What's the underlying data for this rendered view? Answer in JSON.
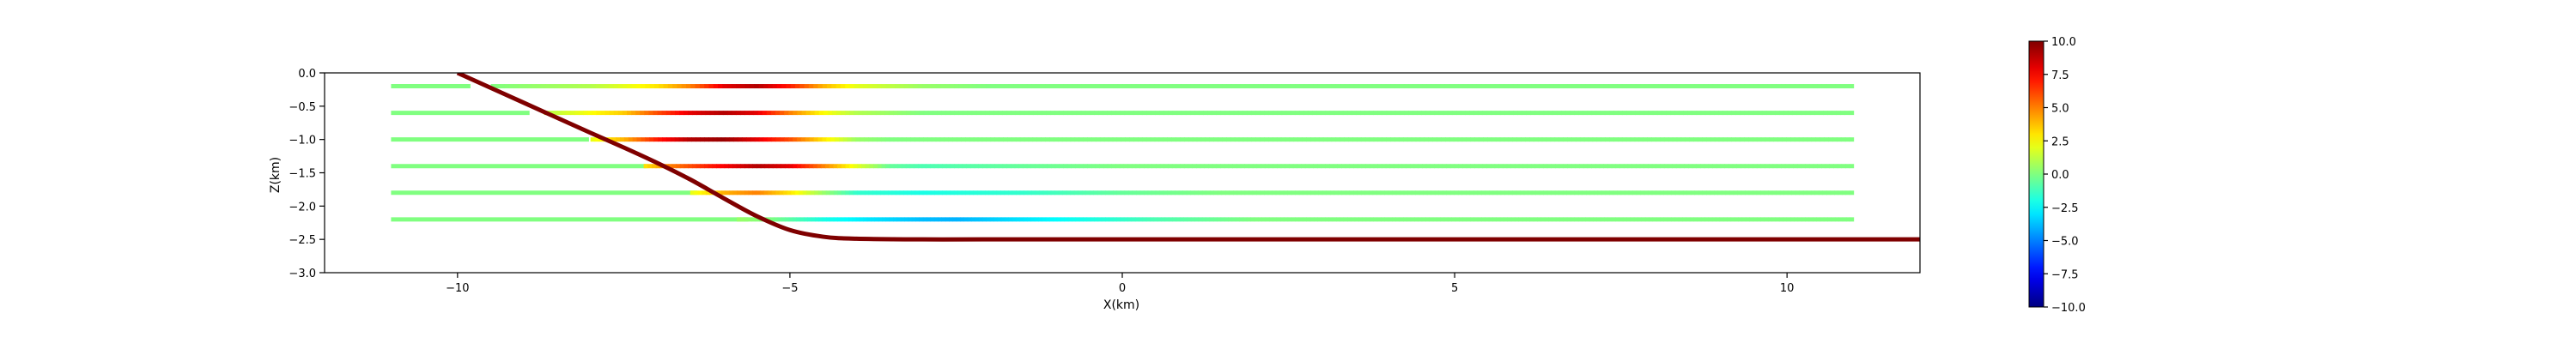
{
  "chart_data": {
    "type": "scatter",
    "xlabel": "X(km)",
    "ylabel": "Z(km)",
    "xlim": [
      -12,
      12
    ],
    "ylim": [
      -3.0,
      0.0
    ],
    "xticks": [
      -10,
      -5,
      0,
      5,
      10
    ],
    "yticks": [
      0.0,
      -0.5,
      -1.0,
      -1.5,
      -2.0,
      -2.5,
      -3.0
    ],
    "xtick_labels": [
      "−10",
      "−5",
      "0",
      "5",
      "10"
    ],
    "ytick_labels": [
      "0.0",
      "−0.5",
      "−1.0",
      "−1.5",
      "−2.0",
      "−2.5",
      "−3.0"
    ],
    "grid": false,
    "colorbar": {
      "colormap": "jet",
      "range": [
        -10.0,
        10.0
      ],
      "ticks": [
        10.0,
        7.5,
        5.0,
        2.5,
        0.0,
        -2.5,
        -5.0,
        -7.5,
        -10.0
      ],
      "tick_labels": [
        "10.0",
        "7.5",
        "5.0",
        "2.5",
        "0.0",
        "−2.5",
        "−5.0",
        "−7.5",
        "−10.0"
      ]
    },
    "fault": {
      "color": "#7f0000",
      "x": [
        -10.0,
        -9.0,
        -8.0,
        -7.5,
        -7.0,
        -6.5,
        -6.0,
        -5.5,
        -5.0,
        -4.5,
        -4.0,
        -3.0,
        -2.0,
        0.0,
        5.0,
        10.0,
        12.0
      ],
      "z": [
        0.0,
        -0.45,
        -0.9,
        -1.12,
        -1.35,
        -1.6,
        -1.88,
        -2.15,
        -2.36,
        -2.46,
        -2.49,
        -2.5,
        -2.5,
        -2.5,
        -2.5,
        -2.5,
        -2.5
      ]
    },
    "profiles": [
      {
        "z": -0.2,
        "x_start": -11.0,
        "x_end": 11.0,
        "hanging_wall_start": -9.5,
        "value_points": [
          [
            -9.5,
            0.0
          ],
          [
            -8.0,
            1.0
          ],
          [
            -7.0,
            3.0
          ],
          [
            -6.5,
            5.0
          ],
          [
            -6.0,
            8.0
          ],
          [
            -5.5,
            9.0
          ],
          [
            -5.0,
            7.0
          ],
          [
            -4.5,
            4.0
          ],
          [
            -4.0,
            2.0
          ],
          [
            -3.0,
            0.5
          ],
          [
            -2.0,
            0.0
          ],
          [
            11.0,
            0.0
          ]
        ]
      },
      {
        "z": -0.6,
        "x_start": -11.0,
        "x_end": 11.0,
        "hanging_wall_start": -8.7,
        "value_points": [
          [
            -8.7,
            1.0
          ],
          [
            -8.2,
            2.0
          ],
          [
            -7.5,
            3.5
          ],
          [
            -7.0,
            6.0
          ],
          [
            -6.5,
            8.0
          ],
          [
            -6.0,
            9.0
          ],
          [
            -5.5,
            8.0
          ],
          [
            -5.0,
            5.0
          ],
          [
            -4.5,
            2.5
          ],
          [
            -4.0,
            1.0
          ],
          [
            -3.0,
            0.0
          ],
          [
            11.0,
            0.0
          ]
        ]
      },
      {
        "z": -1.0,
        "x_start": -11.0,
        "x_end": 11.0,
        "hanging_wall_start": -8.0,
        "value_points": [
          [
            -8.0,
            2.0
          ],
          [
            -7.5,
            4.0
          ],
          [
            -7.0,
            7.0
          ],
          [
            -6.5,
            9.0
          ],
          [
            -6.0,
            9.5
          ],
          [
            -5.5,
            8.0
          ],
          [
            -5.0,
            6.0
          ],
          [
            -4.5,
            3.0
          ],
          [
            -4.0,
            0.5
          ],
          [
            -3.5,
            0.0
          ],
          [
            11.0,
            0.0
          ]
        ]
      },
      {
        "z": -1.4,
        "x_start": -11.0,
        "x_end": 11.0,
        "hanging_wall_start": -7.2,
        "value_points": [
          [
            -7.2,
            3.0
          ],
          [
            -6.8,
            5.0
          ],
          [
            -6.2,
            7.0
          ],
          [
            -5.5,
            9.0
          ],
          [
            -5.0,
            8.0
          ],
          [
            -4.5,
            5.0
          ],
          [
            -4.0,
            2.0
          ],
          [
            -3.5,
            -0.5
          ],
          [
            -3.0,
            -1.0
          ],
          [
            -1.5,
            -0.5
          ],
          [
            0.0,
            0.0
          ],
          [
            11.0,
            0.0
          ]
        ]
      },
      {
        "z": -1.8,
        "x_start": -11.0,
        "x_end": 11.0,
        "hanging_wall_start": -6.5,
        "value_points": [
          [
            -6.5,
            2.0
          ],
          [
            -6.0,
            4.0
          ],
          [
            -5.5,
            5.0
          ],
          [
            -5.0,
            3.0
          ],
          [
            -4.5,
            0.5
          ],
          [
            -4.0,
            -1.5
          ],
          [
            -3.0,
            -2.0
          ],
          [
            -1.5,
            -1.5
          ],
          [
            0.0,
            -0.5
          ],
          [
            1.5,
            0.0
          ],
          [
            11.0,
            0.0
          ]
        ]
      },
      {
        "z": -2.2,
        "x_start": -11.0,
        "x_end": 11.0,
        "hanging_wall_start": -5.8,
        "value_points": [
          [
            -5.8,
            0.5
          ],
          [
            -5.3,
            0.0
          ],
          [
            -4.5,
            -2.0
          ],
          [
            -3.8,
            -3.0
          ],
          [
            -3.0,
            -3.8
          ],
          [
            -2.5,
            -4.0
          ],
          [
            -1.5,
            -3.0
          ],
          [
            -0.5,
            -2.0
          ],
          [
            0.5,
            -1.0
          ],
          [
            2.0,
            0.0
          ],
          [
            11.0,
            0.0
          ]
        ]
      }
    ]
  }
}
